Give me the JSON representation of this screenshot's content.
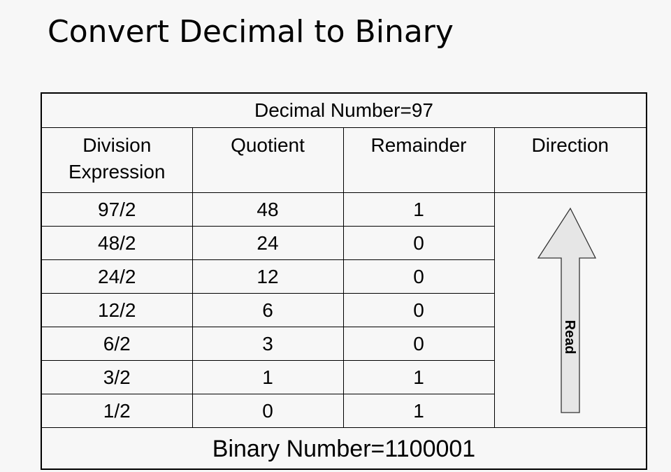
{
  "title": "Convert Decimal to Binary",
  "table": {
    "header": "Decimal Number=97",
    "columns": [
      "Division Expression",
      "Quotient",
      "Remainder",
      "Direction"
    ],
    "rows": [
      [
        "97/2",
        "48",
        "1"
      ],
      [
        "48/2",
        "24",
        "0"
      ],
      [
        "24/2",
        "12",
        "0"
      ],
      [
        "12/2",
        "6",
        "0"
      ],
      [
        "6/2",
        "3",
        "0"
      ],
      [
        "3/2",
        "1",
        "1"
      ],
      [
        "1/2",
        "0",
        "1"
      ]
    ],
    "arrow_label": "Read",
    "arrow_color": "#e6e6e6",
    "footer": "Binary Number=1100001"
  }
}
